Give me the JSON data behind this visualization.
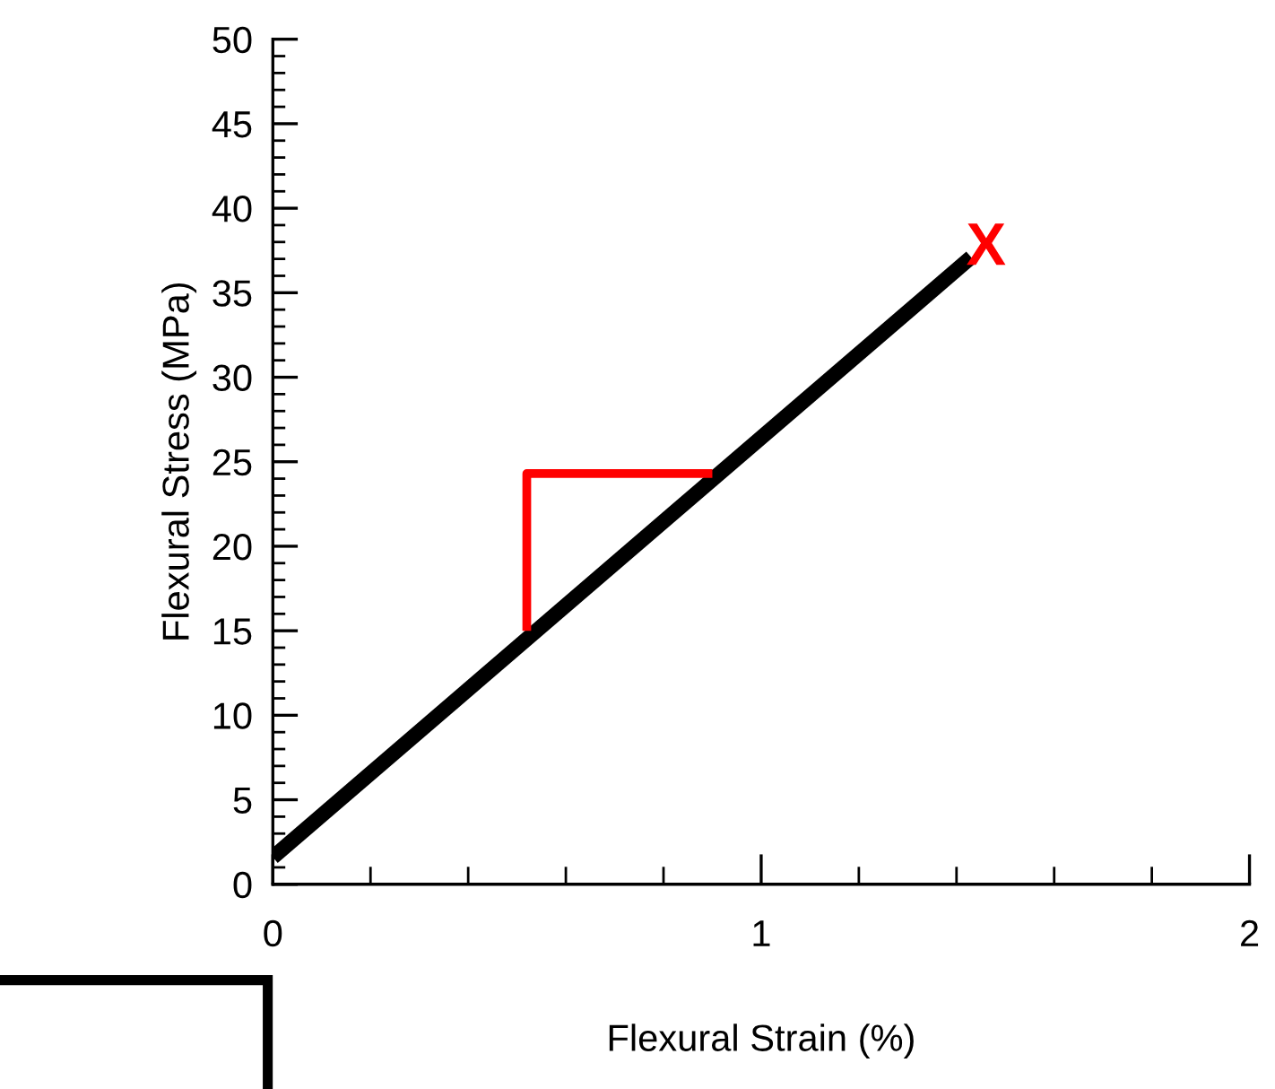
{
  "chart_data": {
    "type": "line",
    "xlabel": "Flexural Strain (%)",
    "ylabel": "Flexural Stress (MPa)",
    "series": [
      {
        "color": "#000000",
        "x": [
          0,
          1.43
        ],
        "values": [
          1.6,
          37.1
        ]
      },
      {
        "color": "#ff0000",
        "x": [
          0.52,
          0.52,
          0.9
        ],
        "values": [
          15.0,
          24.3,
          24.3
        ]
      }
    ],
    "annotations": [
      "X"
    ],
    "xlim": [
      0,
      2
    ],
    "xticks": [
      0,
      1,
      2
    ],
    "ylim": [
      0,
      50
    ],
    "yticks": [
      0,
      5,
      10,
      15,
      20,
      25,
      30,
      35,
      40,
      45,
      50
    ],
    "grid": false,
    "legend": false,
    "marker": "none",
    "line_style": "solid"
  }
}
